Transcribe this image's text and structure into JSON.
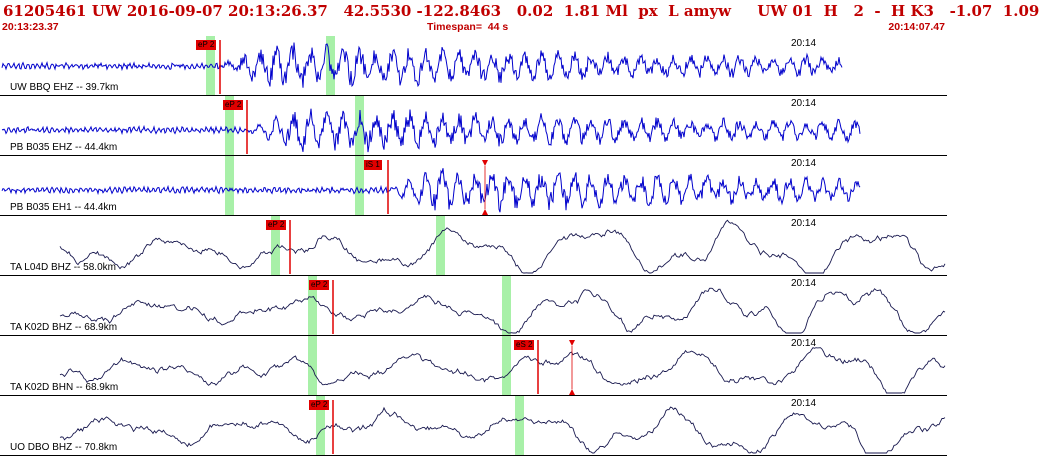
{
  "header": {
    "info_line": "61205461 UW 2016-09-07 20:13:26.37   42.5530 -122.8463   0.02  1.81 Ml  px  L amyw     UW 01  H   2  -  H K3   -1.07  1.09",
    "start_time": "20:13:23.37",
    "timespan": "Timespan=  44 s",
    "end_time": "20:14:07.47"
  },
  "colors": {
    "header_text": "#c00000",
    "trace_hf": "#0000cc",
    "trace_lp": "#1a1a50",
    "pick_marker": "#e00000",
    "window_band": "#a8f0a8",
    "separator": "#000000"
  },
  "channels": [
    {
      "label": "UW BBQ EHZ -- 39.7km",
      "time_label": "20:14",
      "style": "hf",
      "picks": [
        {
          "tag": "eP 2",
          "frac": 0.2325
        }
      ],
      "bands": [
        0.2217,
        0.3484
      ],
      "arrows": []
    },
    {
      "label": "PB B035 EHZ -- 44.4km",
      "time_label": "20:14",
      "style": "hf",
      "picks": [
        {
          "tag": "eP 2",
          "frac": 0.2608
        }
      ],
      "bands": [
        0.2418,
        0.379
      ],
      "arrows": []
    },
    {
      "label": "PB B035 EH1 -- 44.4km",
      "time_label": "20:14",
      "style": "hf",
      "picks": [
        {
          "tag": "iS 1",
          "frac": 0.4097
        }
      ],
      "bands": [
        0.2418,
        0.379
      ],
      "arrows": [
        0.5121
      ]
    },
    {
      "label": "TA L04D BHZ -- 58.0km",
      "time_label": "20:14",
      "style": "lp",
      "picks": [
        {
          "tag": "eP 2",
          "frac": 0.3062
        }
      ],
      "bands": [
        0.2904,
        0.4646
      ],
      "arrows": []
    },
    {
      "label": "TA K02D BHZ -- 68.9km",
      "time_label": "20:14",
      "style": "lp",
      "picks": [
        {
          "tag": "eP 2",
          "frac": 0.3516
        }
      ],
      "bands": [
        0.3294,
        0.5343
      ],
      "arrows": []
    },
    {
      "label": "TA K02D BHN -- 68.9km",
      "time_label": "20:14",
      "style": "lp",
      "picks": [
        {
          "tag": "eS 2",
          "frac": 0.5681
        }
      ],
      "bands": [
        0.3294,
        0.5343
      ],
      "arrows": [
        0.604
      ]
    },
    {
      "label": "UO DBO BHZ -- 70.8km",
      "time_label": "20:14",
      "style": "lp",
      "picks": [
        {
          "tag": "eP 2",
          "frac": 0.3516
        }
      ],
      "bands": [
        0.3379,
        0.5481
      ],
      "arrows": []
    }
  ]
}
